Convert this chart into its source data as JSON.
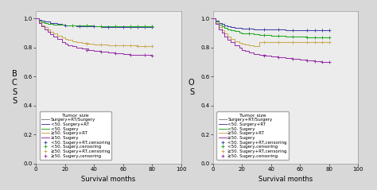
{
  "fig_width": 4.74,
  "fig_height": 2.39,
  "bg_color": "#d8d8d8",
  "panel_bg": "#ececec",
  "xlim": [
    0,
    100
  ],
  "ylim": [
    0.0,
    1.05
  ],
  "xticks": [
    0,
    20,
    40,
    60,
    80,
    100
  ],
  "yticks": [
    0.0,
    0.2,
    0.4,
    0.6,
    0.8,
    1.0
  ],
  "xlabel": "Survival months",
  "ylabel_left": "B\nC\nS\nS",
  "ylabel_right": "O\nS",
  "label_fontsize": 6.0,
  "tick_fontsize": 5.0,
  "legend_fontsize": 4.0,
  "colors": {
    "lt50_RT": "#4444aa",
    "lt50_surg": "#22aa22",
    "ge50_RT": "#ccaa55",
    "ge50_surg": "#9933aa"
  },
  "bcss": {
    "lt50_RT_x": [
      0,
      2,
      4,
      6,
      8,
      10,
      12,
      15,
      18,
      20,
      24,
      28,
      32,
      36,
      40,
      45,
      50,
      55,
      60,
      65,
      70,
      75,
      80
    ],
    "lt50_RT_y": [
      1.0,
      0.99,
      0.985,
      0.982,
      0.978,
      0.972,
      0.968,
      0.963,
      0.958,
      0.955,
      0.952,
      0.95,
      0.948,
      0.946,
      0.945,
      0.944,
      0.943,
      0.942,
      0.941,
      0.94,
      0.94,
      0.94,
      0.94
    ],
    "lt50_surg_x": [
      0,
      2,
      4,
      6,
      8,
      10,
      12,
      15,
      18,
      20,
      24,
      28,
      32,
      36,
      40,
      45,
      50,
      55,
      60,
      65,
      70,
      75,
      80
    ],
    "lt50_surg_y": [
      1.0,
      0.985,
      0.975,
      0.97,
      0.966,
      0.962,
      0.96,
      0.958,
      0.956,
      0.955,
      0.954,
      0.953,
      0.952,
      0.951,
      0.95,
      0.95,
      0.95,
      0.95,
      0.95,
      0.95,
      0.95,
      0.95,
      0.95
    ],
    "ge50_RT_x": [
      0,
      2,
      4,
      6,
      8,
      10,
      12,
      15,
      18,
      20,
      22,
      25,
      28,
      32,
      36,
      40,
      45,
      50,
      55,
      60,
      65,
      70,
      75,
      80
    ],
    "ge50_RT_y": [
      1.0,
      0.975,
      0.955,
      0.94,
      0.925,
      0.91,
      0.897,
      0.882,
      0.87,
      0.86,
      0.852,
      0.845,
      0.838,
      0.83,
      0.825,
      0.822,
      0.82,
      0.818,
      0.816,
      0.815,
      0.813,
      0.812,
      0.811,
      0.81
    ],
    "ge50_surg_x": [
      0,
      2,
      4,
      6,
      8,
      10,
      12,
      15,
      18,
      20,
      22,
      25,
      28,
      32,
      36,
      40,
      45,
      50,
      55,
      60,
      65,
      70,
      75,
      80
    ],
    "ge50_surg_y": [
      1.0,
      0.97,
      0.945,
      0.928,
      0.91,
      0.892,
      0.876,
      0.858,
      0.84,
      0.828,
      0.818,
      0.808,
      0.8,
      0.792,
      0.785,
      0.778,
      0.772,
      0.765,
      0.76,
      0.755,
      0.752,
      0.75,
      0.748,
      0.747
    ],
    "lt50_RT_cens_x": [
      20,
      30,
      40,
      50,
      60,
      65,
      70,
      75,
      80
    ],
    "lt50_RT_cens_y": [
      0.955,
      0.95,
      0.945,
      0.943,
      0.941,
      0.94,
      0.94,
      0.94,
      0.94
    ],
    "lt50_surg_cens_x": [
      25,
      35,
      45,
      55,
      65,
      70,
      75,
      80
    ],
    "lt50_surg_cens_y": [
      0.954,
      0.952,
      0.95,
      0.95,
      0.95,
      0.95,
      0.95,
      0.95
    ],
    "ge50_RT_cens_x": [
      35,
      45,
      55,
      60,
      65,
      70,
      75,
      80
    ],
    "ge50_RT_cens_y": [
      0.825,
      0.82,
      0.816,
      0.815,
      0.813,
      0.812,
      0.811,
      0.81
    ],
    "ge50_surg_cens_x": [
      35,
      45,
      55,
      65,
      75,
      80
    ],
    "ge50_surg_cens_y": [
      0.785,
      0.772,
      0.76,
      0.752,
      0.748,
      0.747
    ]
  },
  "os": {
    "lt50_RT_x": [
      0,
      2,
      4,
      6,
      8,
      10,
      12,
      15,
      18,
      20,
      24,
      28,
      32,
      36,
      40,
      45,
      50,
      55,
      60,
      65,
      70,
      75,
      80
    ],
    "lt50_RT_y": [
      1.0,
      0.985,
      0.972,
      0.962,
      0.955,
      0.948,
      0.942,
      0.937,
      0.934,
      0.931,
      0.929,
      0.927,
      0.926,
      0.925,
      0.924,
      0.923,
      0.922,
      0.921,
      0.92,
      0.919,
      0.919,
      0.919,
      0.919
    ],
    "lt50_surg_x": [
      0,
      2,
      4,
      6,
      8,
      10,
      12,
      15,
      18,
      20,
      24,
      28,
      32,
      36,
      40,
      45,
      50,
      55,
      60,
      65,
      70,
      75,
      80
    ],
    "lt50_surg_y": [
      1.0,
      0.978,
      0.96,
      0.948,
      0.938,
      0.928,
      0.92,
      0.912,
      0.905,
      0.9,
      0.896,
      0.892,
      0.888,
      0.885,
      0.882,
      0.88,
      0.878,
      0.876,
      0.875,
      0.873,
      0.872,
      0.87,
      0.87
    ],
    "ge50_RT_x": [
      0,
      2,
      4,
      6,
      8,
      10,
      12,
      15,
      18,
      20,
      22,
      25,
      28,
      32,
      36,
      40,
      45,
      50,
      55,
      60,
      65,
      70,
      75,
      80
    ],
    "ge50_RT_y": [
      1.0,
      0.968,
      0.94,
      0.918,
      0.898,
      0.878,
      0.862,
      0.845,
      0.832,
      0.825,
      0.82,
      0.815,
      0.812,
      0.84,
      0.84,
      0.84,
      0.84,
      0.84,
      0.84,
      0.84,
      0.84,
      0.84,
      0.84,
      0.84
    ],
    "ge50_surg_x": [
      0,
      2,
      4,
      6,
      8,
      10,
      12,
      15,
      18,
      20,
      22,
      25,
      28,
      32,
      36,
      40,
      45,
      50,
      55,
      60,
      65,
      70,
      75,
      80
    ],
    "ge50_surg_y": [
      1.0,
      0.962,
      0.928,
      0.902,
      0.878,
      0.855,
      0.835,
      0.815,
      0.798,
      0.785,
      0.775,
      0.765,
      0.755,
      0.748,
      0.742,
      0.738,
      0.732,
      0.726,
      0.72,
      0.715,
      0.71,
      0.705,
      0.7,
      0.698
    ],
    "lt50_RT_cens_x": [
      25,
      35,
      45,
      55,
      65,
      70,
      75,
      80
    ],
    "lt50_RT_cens_y": [
      0.929,
      0.926,
      0.923,
      0.921,
      0.919,
      0.919,
      0.919,
      0.919
    ],
    "lt50_surg_cens_x": [
      25,
      35,
      45,
      55,
      65,
      70,
      75,
      80
    ],
    "lt50_surg_cens_y": [
      0.896,
      0.888,
      0.88,
      0.876,
      0.873,
      0.872,
      0.87,
      0.87
    ],
    "ge50_RT_cens_x": [
      35,
      45,
      55,
      65,
      70,
      75,
      80
    ],
    "ge50_RT_cens_y": [
      0.84,
      0.84,
      0.84,
      0.84,
      0.84,
      0.84,
      0.84
    ],
    "ge50_surg_cens_x": [
      35,
      45,
      55,
      65,
      70,
      75,
      80
    ],
    "ge50_surg_cens_y": [
      0.742,
      0.732,
      0.72,
      0.71,
      0.705,
      0.7,
      0.698
    ]
  },
  "legend_title": "Tumor size",
  "legend_entries": [
    "Surgery+RT/Surgery",
    "<50. Surgery+RT",
    "<50. Sugery",
    "≥50. Sugery+RT",
    "≥50. Sugery",
    "<50. Sugery+RT,censoring",
    "<50. Sugery,censoring",
    "≥50. Sugery+RT,censoring",
    "≥50. Sugery,censoring"
  ]
}
